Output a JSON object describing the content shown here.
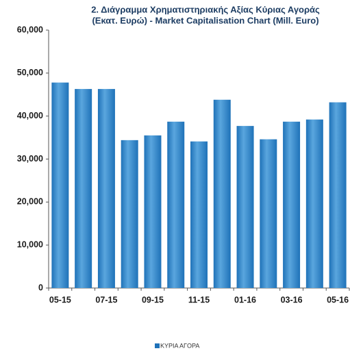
{
  "chart_data": {
    "type": "bar",
    "title": [
      "2. Διάγραμμα Χρηματιστηριακής Αξίας Κύριας Αγοράς",
      "(Εκατ. Ευρώ) - Market Capitalisation Chart (Mill. Euro)"
    ],
    "categories": [
      "05-15",
      null,
      "07-15",
      null,
      "09-15",
      null,
      "11-15",
      null,
      "01-16",
      null,
      "03-16",
      null,
      "05-16"
    ],
    "series": [
      {
        "name": "ΚΥΡΙΑ ΑΓΟΡΑ",
        "color": "#1f72b8",
        "values": [
          47800,
          46300,
          46300,
          34400,
          35500,
          38700,
          34100,
          43800,
          37700,
          34600,
          38700,
          39200,
          43200
        ]
      }
    ],
    "ylim": [
      0,
      60000
    ],
    "yticks": [
      0,
      {
        "value": 10000,
        "label": "10,000"
      },
      {
        "value": 20000,
        "label": "20,000"
      },
      {
        "value": 30000,
        "label": "30,000"
      },
      {
        "value": 40000,
        "label": "40,000"
      },
      {
        "value": 50000,
        "label": "50,000"
      },
      {
        "value": 60000,
        "label": "60,000"
      }
    ],
    "grid": false
  }
}
